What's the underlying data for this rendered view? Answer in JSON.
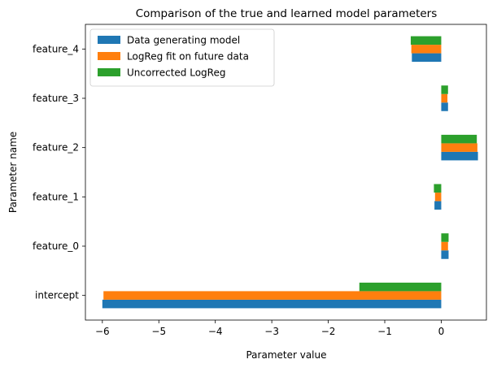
{
  "chart_data": {
    "type": "bar",
    "orientation": "horizontal",
    "title": "Comparison of the true and learned model parameters",
    "xlabel": "Parameter value",
    "ylabel": "Parameter name",
    "categories": [
      "intercept",
      "feature_0",
      "feature_1",
      "feature_2",
      "feature_3",
      "feature_4"
    ],
    "xlim": [
      -6.3,
      0.8
    ],
    "xticks": [
      -6,
      -5,
      -4,
      -3,
      -2,
      -1,
      0
    ],
    "grid": false,
    "legend_position": "top-left",
    "series": [
      {
        "name": "Data generating model",
        "color": "#1f77b4",
        "values": [
          -6.0,
          0.13,
          -0.12,
          0.65,
          0.12,
          -0.52
        ]
      },
      {
        "name": "LogReg fit on future data",
        "color": "#ff7f0e",
        "values": [
          -5.98,
          0.12,
          -0.11,
          0.64,
          0.11,
          -0.53
        ]
      },
      {
        "name": "Uncorrected LogReg",
        "color": "#2ca02c",
        "values": [
          -1.45,
          0.13,
          -0.13,
          0.63,
          0.12,
          -0.54
        ]
      }
    ]
  }
}
